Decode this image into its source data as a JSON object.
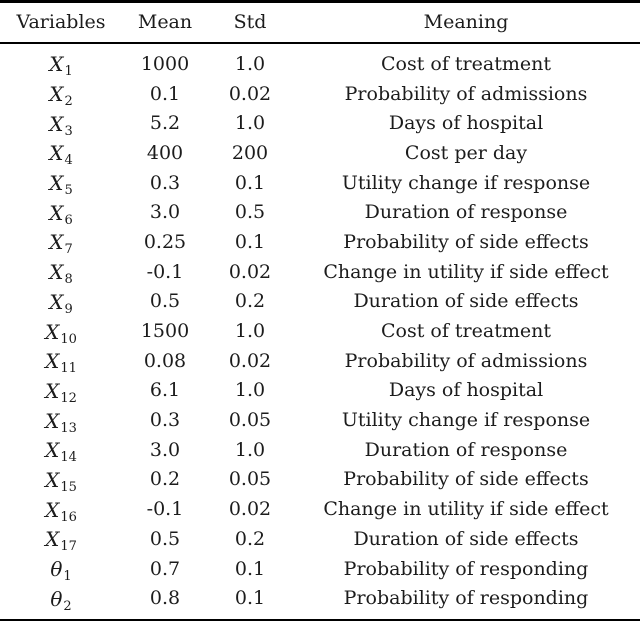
{
  "table": {
    "columns": [
      "Variables",
      "Mean",
      "Std",
      "Meaning"
    ],
    "rows": [
      {
        "var_base": "X",
        "var_sub": "1",
        "mean": "1000",
        "std": "1.0",
        "meaning": "Cost of treatment"
      },
      {
        "var_base": "X",
        "var_sub": "2",
        "mean": "0.1",
        "std": "0.02",
        "meaning": "Probability of admissions"
      },
      {
        "var_base": "X",
        "var_sub": "3",
        "mean": "5.2",
        "std": "1.0",
        "meaning": "Days of hospital"
      },
      {
        "var_base": "X",
        "var_sub": "4",
        "mean": "400",
        "std": "200",
        "meaning": "Cost per day"
      },
      {
        "var_base": "X",
        "var_sub": "5",
        "mean": "0.3",
        "std": "0.1",
        "meaning": "Utility change if response"
      },
      {
        "var_base": "X",
        "var_sub": "6",
        "mean": "3.0",
        "std": "0.5",
        "meaning": "Duration of response"
      },
      {
        "var_base": "X",
        "var_sub": "7",
        "mean": "0.25",
        "std": "0.1",
        "meaning": "Probability of side effects"
      },
      {
        "var_base": "X",
        "var_sub": "8",
        "mean": "-0.1",
        "std": "0.02",
        "meaning": "Change in utility if side effect"
      },
      {
        "var_base": "X",
        "var_sub": "9",
        "mean": "0.5",
        "std": "0.2",
        "meaning": "Duration of side effects"
      },
      {
        "var_base": "X",
        "var_sub": "10",
        "mean": "1500",
        "std": "1.0",
        "meaning": "Cost of treatment"
      },
      {
        "var_base": "X",
        "var_sub": "11",
        "mean": "0.08",
        "std": "0.02",
        "meaning": "Probability of admissions"
      },
      {
        "var_base": "X",
        "var_sub": "12",
        "mean": "6.1",
        "std": "1.0",
        "meaning": "Days of hospital"
      },
      {
        "var_base": "X",
        "var_sub": "13",
        "mean": "0.3",
        "std": "0.05",
        "meaning": "Utility change if response"
      },
      {
        "var_base": "X",
        "var_sub": "14",
        "mean": "3.0",
        "std": "1.0",
        "meaning": "Duration of response"
      },
      {
        "var_base": "X",
        "var_sub": "15",
        "mean": "0.2",
        "std": "0.05",
        "meaning": "Probability of side effects"
      },
      {
        "var_base": "X",
        "var_sub": "16",
        "mean": "-0.1",
        "std": "0.02",
        "meaning": "Change in utility if side effect"
      },
      {
        "var_base": "X",
        "var_sub": "17",
        "mean": "0.5",
        "std": "0.2",
        "meaning": "Duration of side effects"
      },
      {
        "var_base": "θ",
        "var_sub": "1",
        "mean": "0.7",
        "std": "0.1",
        "meaning": "Probability of responding"
      },
      {
        "var_base": "θ",
        "var_sub": "2",
        "mean": "0.8",
        "std": "0.1",
        "meaning": "Probability of responding"
      }
    ]
  },
  "colors": {
    "background": "#ffffff",
    "text": "#1c1c1c",
    "rule": "#000000"
  }
}
